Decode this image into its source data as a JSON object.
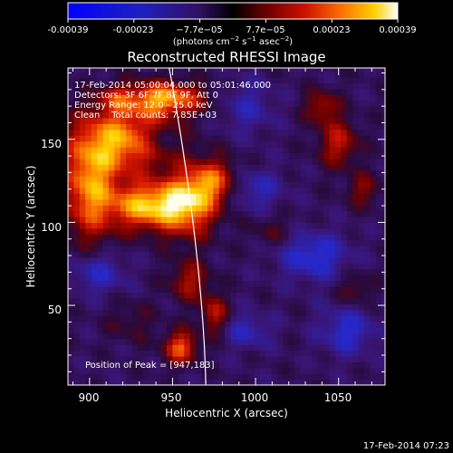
{
  "colorbar": {
    "tick_labels": [
      "-0.00039",
      "-0.00023",
      "−7.7e−05",
      "7.7e−05",
      "0.00023",
      "0.00039"
    ],
    "units_prefix": "(photons cm",
    "units_exp1": "−2",
    "units_mid": " s",
    "units_exp2": "−1",
    "units_mid2": " asec",
    "units_exp3": "−2",
    "units_suffix": ")",
    "range": [
      -0.00039,
      0.00039
    ]
  },
  "chart_data": {
    "type": "heatmap",
    "title": "Reconstructed RHESSI Image",
    "xlabel": "Heliocentric X (arcsec)",
    "ylabel": "Heliocentric Y (arcsec)",
    "xlim": [
      887,
      1078
    ],
    "ylim": [
      2,
      193
    ],
    "x_ticks": [
      900,
      950,
      1000,
      1050
    ],
    "y_ticks": [
      50,
      100,
      150
    ],
    "x_tick_labels": [
      "900",
      "950",
      "1000",
      "1050"
    ],
    "y_tick_labels": [
      "50",
      "100",
      "150"
    ],
    "colormap": "RHESSI blue-black-red-yellow-white",
    "annotations": [
      "17-Feb-2014 05:00:04.000 to 05:01:46.000",
      "Detectors: 3F 6F 7F 8F 9F, Att 0",
      "Energy Range: 12.0 - 25.0 keV",
      "Clean    Total counts: 7.85E+03"
    ],
    "peak_label": "Position of Peak = [947,183]",
    "peak_position": [
      947,
      183
    ],
    "limb_color": "#ffffff"
  },
  "timestamp": "17-Feb-2014 07:23"
}
